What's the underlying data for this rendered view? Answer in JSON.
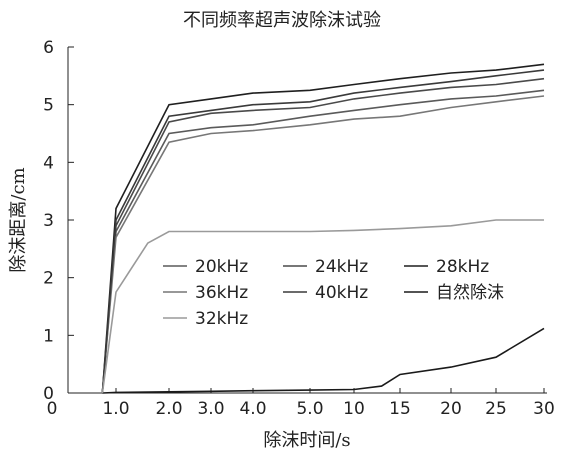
{
  "chart_data": {
    "type": "line",
    "title": "不同频率超声波除沫试验",
    "xlabel": "除沫时间/s",
    "ylabel": "除沫距离/cm",
    "xticks": [
      "0",
      "1.0",
      "2.0",
      "3.0",
      "4.0",
      "5.0",
      "10",
      "15",
      "20",
      "25",
      "30"
    ],
    "yticks": [
      "0",
      "1",
      "2",
      "3",
      "4",
      "5",
      "6"
    ],
    "ylim": [
      0,
      6
    ],
    "grid": false,
    "legend_position": "center",
    "series": [
      {
        "name": "20kHz",
        "color": "#5a5a5a",
        "x": [
          0.6,
          1.0,
          2.0,
          3.0,
          4.0,
          5.0,
          10,
          15,
          20,
          25,
          30
        ],
        "y": [
          0,
          2.8,
          4.5,
          4.6,
          4.65,
          4.8,
          4.9,
          5.0,
          5.1,
          5.15,
          5.25
        ]
      },
      {
        "name": "24kHz",
        "color": "#4a4a4a",
        "x": [
          0.6,
          1.0,
          2.0,
          3.0,
          4.0,
          5.0,
          10,
          15,
          20,
          25,
          30
        ],
        "y": [
          0,
          2.9,
          4.7,
          4.85,
          4.9,
          4.95,
          5.1,
          5.2,
          5.3,
          5.35,
          5.45
        ]
      },
      {
        "name": "28kHz",
        "color": "#1f1f1f",
        "x": [
          0.6,
          1.0,
          2.0,
          3.0,
          4.0,
          5.0,
          10,
          15,
          20,
          25,
          30
        ],
        "y": [
          0,
          3.2,
          5.0,
          5.1,
          5.2,
          5.25,
          5.35,
          5.45,
          5.55,
          5.6,
          5.7
        ]
      },
      {
        "name": "36kHz",
        "color": "#777777",
        "x": [
          0.6,
          1.0,
          2.0,
          3.0,
          4.0,
          5.0,
          10,
          15,
          20,
          25,
          30
        ],
        "y": [
          0,
          2.7,
          4.35,
          4.5,
          4.55,
          4.65,
          4.75,
          4.8,
          4.95,
          5.05,
          5.15
        ]
      },
      {
        "name": "40kHz",
        "color": "#3a3a3a",
        "x": [
          0.6,
          1.0,
          2.0,
          3.0,
          4.0,
          5.0,
          10,
          15,
          20,
          25,
          30
        ],
        "y": [
          0,
          3.0,
          4.8,
          4.9,
          5.0,
          5.05,
          5.2,
          5.3,
          5.4,
          5.5,
          5.6
        ]
      },
      {
        "name": "自然除沫",
        "color": "#1a1a1a",
        "x": [
          0.6,
          1.0,
          2.0,
          3.0,
          4.0,
          5.0,
          10,
          13,
          15,
          20,
          25,
          30
        ],
        "y": [
          0,
          0.01,
          0.02,
          0.03,
          0.04,
          0.05,
          0.06,
          0.12,
          0.32,
          0.45,
          0.62,
          1.12
        ]
      },
      {
        "name": "32kHz",
        "color": "#9a9a9a",
        "x": [
          0.6,
          1.0,
          1.6,
          2.0,
          3.0,
          4.0,
          5.0,
          10,
          15,
          20,
          25,
          30
        ],
        "y": [
          0,
          1.75,
          2.6,
          2.8,
          2.8,
          2.8,
          2.8,
          2.82,
          2.85,
          2.9,
          3.0,
          3.0
        ]
      }
    ]
  }
}
